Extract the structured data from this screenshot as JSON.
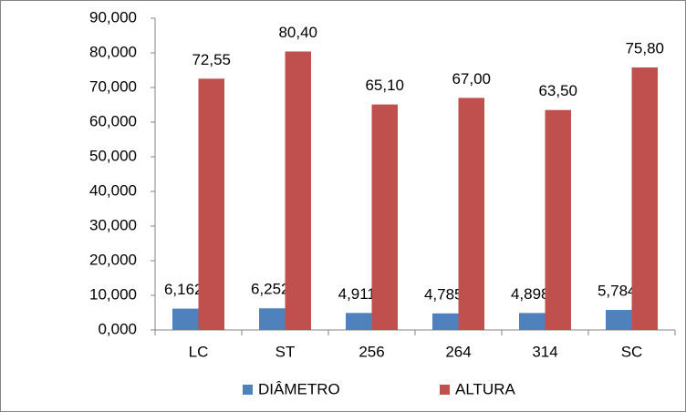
{
  "chart_data": {
    "type": "bar",
    "categories": [
      "LC",
      "ST",
      "256",
      "264",
      "314",
      "SC"
    ],
    "series": [
      {
        "name": "DIÂMETRO",
        "color": "#4f81bd",
        "values": [
          6.162,
          6.252,
          4.911,
          4.785,
          4.898,
          5.784
        ],
        "value_labels": [
          "6,162",
          "6,252",
          "4,911",
          "4,785",
          "4,898",
          "5,784"
        ]
      },
      {
        "name": "ALTURA",
        "color": "#c0504d",
        "values": [
          72.55,
          80.4,
          65.1,
          67.0,
          63.5,
          75.8
        ],
        "value_labels": [
          "72,55",
          "80,40",
          "65,10",
          "67,00",
          "63,50",
          "75,80"
        ]
      }
    ],
    "ylim": [
      0,
      90
    ],
    "yticks": [
      {
        "value": 0,
        "label": "0,000"
      },
      {
        "value": 10,
        "label": "10,000"
      },
      {
        "value": 20,
        "label": "20,000"
      },
      {
        "value": 30,
        "label": "30,000"
      },
      {
        "value": 40,
        "label": "40,000"
      },
      {
        "value": 50,
        "label": "50,000"
      },
      {
        "value": 60,
        "label": "60,000"
      },
      {
        "value": 70,
        "label": "70,000"
      },
      {
        "value": 80,
        "label": "80,000"
      },
      {
        "value": 90,
        "label": "90,000"
      }
    ],
    "grid": false,
    "legend": "bottom"
  }
}
